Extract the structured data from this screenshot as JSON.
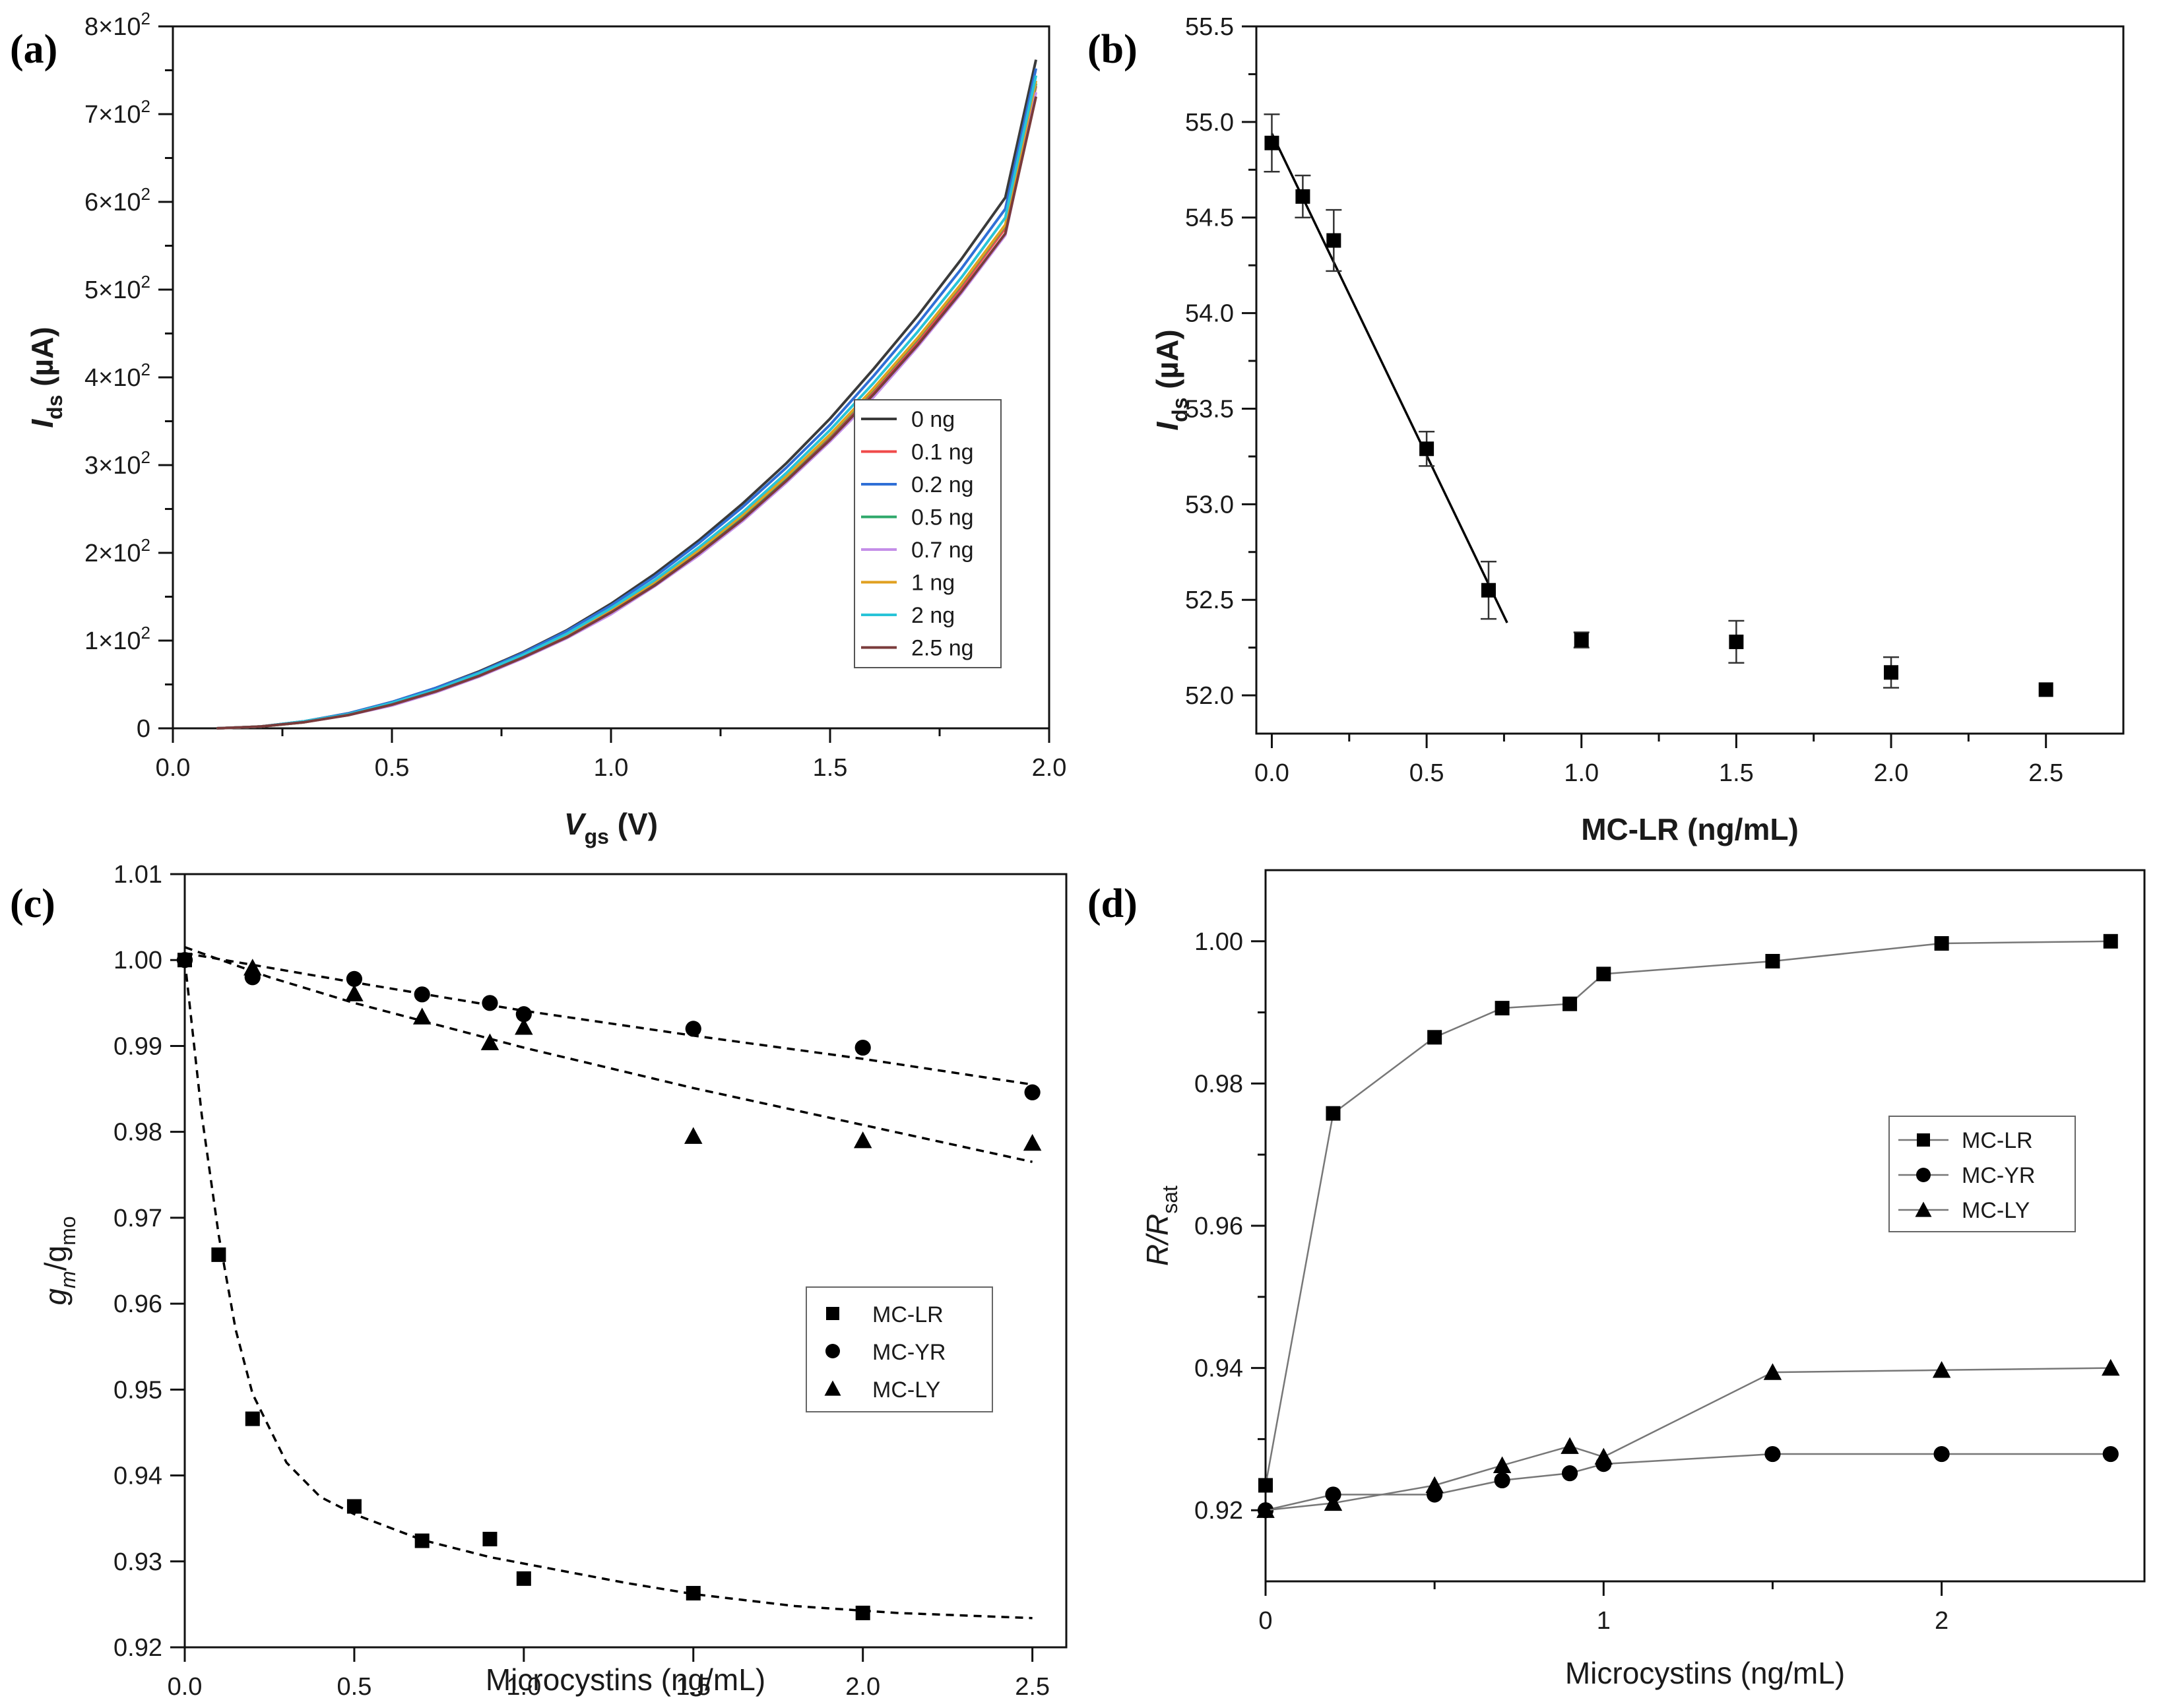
{
  "chart_data": [
    {
      "id": "a",
      "panel_label": "(a)",
      "type": "line",
      "xlabel": "V",
      "xlabel_sub": "gs",
      "xlabel_unit": " (V)",
      "ylabel": "I",
      "ylabel_sub": "ds",
      "ylabel_unit": " (µA)",
      "xlim": [
        0,
        2.0
      ],
      "ylim": [
        0,
        800
      ],
      "x_ticks": [
        {
          "value": 0.0,
          "label": "0.0"
        },
        {
          "value": 0.5,
          "label": "0.5"
        },
        {
          "value": 1.0,
          "label": "1.0"
        },
        {
          "value": 1.5,
          "label": "1.5"
        },
        {
          "value": 2.0,
          "label": "2.0"
        }
      ],
      "y_ticks": [
        {
          "value": 0,
          "base": "0",
          "exp": ""
        },
        {
          "value": 100,
          "base": "1×10",
          "exp": "2"
        },
        {
          "value": 200,
          "base": "2×10",
          "exp": "2"
        },
        {
          "value": 300,
          "base": "3×10",
          "exp": "2"
        },
        {
          "value": 400,
          "base": "4×10",
          "exp": "2"
        },
        {
          "value": 500,
          "base": "5×10",
          "exp": "2"
        },
        {
          "value": 600,
          "base": "6×10",
          "exp": "2"
        },
        {
          "value": 700,
          "base": "7×10",
          "exp": "2"
        },
        {
          "value": 800,
          "base": "8×10",
          "exp": "2"
        }
      ],
      "x": [
        0.1,
        0.2,
        0.3,
        0.4,
        0.5,
        0.6,
        0.7,
        0.8,
        0.9,
        1.0,
        1.1,
        1.2,
        1.3,
        1.4,
        1.5,
        1.6,
        1.7,
        1.8,
        1.9,
        1.97
      ],
      "series": [
        {
          "name": "0 ng",
          "color": "#3a3a3a",
          "values": [
            0,
            2,
            8,
            17,
            30,
            46,
            65,
            87,
            112,
            142,
            176,
            214,
            256,
            302,
            353,
            410,
            470,
            535,
            605,
            762
          ]
        },
        {
          "name": "0.1 ng",
          "color": "#f04a4a",
          "values": [
            0,
            2,
            7,
            15,
            27,
            42,
            60,
            81,
            105,
            133,
            165,
            201,
            241,
            285,
            333,
            385,
            441,
            503,
            570,
            732
          ]
        },
        {
          "name": "0.2 ng",
          "color": "#2f6fd6",
          "values": [
            0,
            2,
            8,
            17,
            30,
            46,
            64,
            86,
            111,
            140,
            173,
            211,
            252,
            297,
            346,
            402,
            461,
            524,
            592,
            752
          ]
        },
        {
          "name": "0.5 ng",
          "color": "#2ea86a",
          "values": [
            0,
            2,
            7,
            16,
            28,
            43,
            61,
            82,
            106,
            134,
            166,
            202,
            242,
            286,
            334,
            387,
            444,
            506,
            573,
            735
          ]
        },
        {
          "name": "0.7 ng",
          "color": "#c48ee8",
          "values": [
            0,
            2,
            7,
            15,
            26,
            41,
            59,
            80,
            103,
            130,
            162,
            197,
            236,
            280,
            327,
            378,
            435,
            496,
            562,
            725
          ]
        },
        {
          "name": "1 ng",
          "color": "#e0a020",
          "values": [
            0,
            2,
            7,
            16,
            28,
            43,
            62,
            83,
            107,
            135,
            167,
            203,
            243,
            287,
            335,
            388,
            445,
            507,
            574,
            738
          ]
        },
        {
          "name": "2 ng",
          "color": "#28c4d8",
          "values": [
            0,
            2,
            8,
            16,
            29,
            44,
            63,
            84,
            108,
            137,
            169,
            206,
            246,
            291,
            340,
            394,
            452,
            514,
            582,
            744
          ]
        },
        {
          "name": "2.5 ng",
          "color": "#7a3b3b",
          "values": [
            0,
            2,
            7,
            15,
            27,
            42,
            60,
            81,
            104,
            132,
            163,
            199,
            238,
            282,
            329,
            381,
            437,
            498,
            564,
            720
          ]
        }
      ],
      "legend_position": "lower-right"
    },
    {
      "id": "b",
      "panel_label": "(b)",
      "type": "scatter",
      "xlabel": "MC-LR (ng/mL)",
      "ylabel": "I",
      "ylabel_sub": "ds",
      "ylabel_unit": " (µA)",
      "xlim": [
        -0.05,
        2.75
      ],
      "ylim": [
        51.8,
        55.5
      ],
      "x_ticks": [
        {
          "value": 0.0,
          "label": "0.0"
        },
        {
          "value": 0.5,
          "label": "0.5"
        },
        {
          "value": 1.0,
          "label": "1.0"
        },
        {
          "value": 1.5,
          "label": "1.5"
        },
        {
          "value": 2.0,
          "label": "2.0"
        },
        {
          "value": 2.5,
          "label": "2.5"
        }
      ],
      "y_ticks": [
        {
          "value": 52.0,
          "label": "52.0"
        },
        {
          "value": 52.5,
          "label": "52.5"
        },
        {
          "value": 53.0,
          "label": "53.0"
        },
        {
          "value": 53.5,
          "label": "53.5"
        },
        {
          "value": 54.0,
          "label": "54.0"
        },
        {
          "value": 54.5,
          "label": "54.5"
        },
        {
          "value": 55.0,
          "label": "55.0"
        },
        {
          "value": 55.5,
          "label": "55.5"
        }
      ],
      "points": [
        {
          "x": 0.0,
          "y": 54.89,
          "err": 0.15
        },
        {
          "x": 0.1,
          "y": 54.61,
          "err": 0.11
        },
        {
          "x": 0.2,
          "y": 54.38,
          "err": 0.16
        },
        {
          "x": 0.5,
          "y": 53.29,
          "err": 0.09
        },
        {
          "x": 0.7,
          "y": 52.55,
          "err": 0.15
        },
        {
          "x": 1.0,
          "y": 52.29,
          "err": 0.04
        },
        {
          "x": 1.5,
          "y": 52.28,
          "err": 0.11
        },
        {
          "x": 2.0,
          "y": 52.12,
          "err": 0.08
        },
        {
          "x": 2.5,
          "y": 52.03,
          "err": 0.0
        }
      ],
      "fit_line": {
        "x": [
          0.0,
          0.76
        ],
        "y": [
          54.94,
          52.38
        ]
      }
    },
    {
      "id": "c",
      "panel_label": "(c)",
      "type": "scatter",
      "xlabel": "Microcystins (ng/mL)",
      "ylabel": "g",
      "ylabel_sub_italic": "m",
      "ylabel_tail": "/g",
      "ylabel_tail_sub": "mo",
      "xlim": [
        0,
        2.6
      ],
      "ylim": [
        0.92,
        1.01
      ],
      "x_ticks": [
        {
          "value": 0.0,
          "label": "0.0"
        },
        {
          "value": 0.5,
          "label": "0.5"
        },
        {
          "value": 1.0,
          "label": "1.0"
        },
        {
          "value": 1.5,
          "label": "1.5"
        },
        {
          "value": 2.0,
          "label": "2.0"
        },
        {
          "value": 2.5,
          "label": "2.5"
        }
      ],
      "y_ticks": [
        {
          "value": 0.92,
          "label": "0.92"
        },
        {
          "value": 0.93,
          "label": "0.93"
        },
        {
          "value": 0.94,
          "label": "0.94"
        },
        {
          "value": 0.95,
          "label": "0.95"
        },
        {
          "value": 0.96,
          "label": "0.96"
        },
        {
          "value": 0.97,
          "label": "0.97"
        },
        {
          "value": 0.98,
          "label": "0.98"
        },
        {
          "value": 0.99,
          "label": "0.99"
        },
        {
          "value": 1.0,
          "label": "1.00"
        },
        {
          "value": 1.01,
          "label": "1.01"
        }
      ],
      "series": [
        {
          "name": "MC-LR",
          "marker": "square",
          "x": [
            0.0,
            0.1,
            0.2,
            0.5,
            0.7,
            0.9,
            1.0,
            1.5,
            2.0
          ],
          "y": [
            1.0,
            0.9657,
            0.9466,
            0.9364,
            0.9324,
            0.9326,
            0.928,
            0.9263,
            0.924
          ]
        },
        {
          "name": "MC-YR",
          "marker": "circle",
          "x": [
            0.0,
            0.2,
            0.5,
            0.7,
            0.9,
            1.0,
            1.5,
            2.0,
            2.5
          ],
          "y": [
            1.0,
            0.998,
            0.9978,
            0.996,
            0.995,
            0.9937,
            0.992,
            0.9898,
            0.9846
          ]
        },
        {
          "name": "MC-LY",
          "marker": "triangle",
          "x": [
            0.2,
            0.5,
            0.7,
            0.9,
            1.0,
            1.5,
            2.0,
            2.5
          ],
          "y": [
            0.9991,
            0.9961,
            0.9934,
            0.9904,
            0.9922,
            0.9795,
            0.979,
            0.9787
          ]
        }
      ],
      "fits": [
        {
          "series": "MC-LR",
          "x": [
            0.0,
            0.05,
            0.1,
            0.15,
            0.2,
            0.3,
            0.4,
            0.5,
            0.7,
            0.9,
            1.1,
            1.3,
            1.5,
            1.8,
            2.1,
            2.5
          ],
          "y": [
            1.0,
            0.982,
            0.968,
            0.957,
            0.9495,
            0.9415,
            0.9375,
            0.9355,
            0.9325,
            0.9305,
            0.929,
            0.9275,
            0.9262,
            0.9248,
            0.924,
            0.9234
          ]
        },
        {
          "series": "MC-YR",
          "x": [
            0.0,
            0.5,
            1.0,
            1.5,
            2.0,
            2.5
          ],
          "y": [
            1.0008,
            0.9974,
            0.9941,
            0.9912,
            0.9885,
            0.9855
          ]
        },
        {
          "series": "MC-LY",
          "x": [
            0.0,
            0.25,
            0.5,
            0.75,
            1.0,
            1.5,
            2.0,
            2.5
          ],
          "y": [
            1.0015,
            0.998,
            0.995,
            0.9924,
            0.9898,
            0.9851,
            0.9808,
            0.9765
          ]
        }
      ],
      "legend_position": "center-right"
    },
    {
      "id": "d",
      "panel_label": "(d)",
      "type": "line",
      "xlabel": "Microcystins (ng/mL)",
      "ylabel": "R",
      "ylabel_tail": "/R",
      "ylabel_tail_sub": "sat",
      "xlim": [
        0,
        2.6
      ],
      "ylim": [
        0.91,
        1.01
      ],
      "x_ticks": [
        {
          "value": 0,
          "label": "0"
        },
        {
          "value": 1,
          "label": "1"
        },
        {
          "value": 2,
          "label": "2"
        }
      ],
      "y_ticks": [
        {
          "value": 0.92,
          "label": "0.92"
        },
        {
          "value": 0.94,
          "label": "0.94"
        },
        {
          "value": 0.96,
          "label": "0.96"
        },
        {
          "value": 0.98,
          "label": "0.98"
        },
        {
          "value": 1.0,
          "label": "1.00"
        }
      ],
      "series": [
        {
          "name": "MC-LR",
          "marker": "square",
          "x": [
            0.0,
            0.2,
            0.5,
            0.7,
            0.9,
            1.0,
            1.5,
            2.0,
            2.5
          ],
          "y": [
            0.9235,
            0.9758,
            0.9865,
            0.9906,
            0.9912,
            0.9954,
            0.9972,
            0.9997,
            1.0
          ]
        },
        {
          "name": "MC-YR",
          "marker": "circle",
          "x": [
            0.0,
            0.2,
            0.5,
            0.7,
            0.9,
            1.0,
            1.5,
            2.0,
            2.5
          ],
          "y": [
            0.92,
            0.9222,
            0.9222,
            0.9242,
            0.9252,
            0.9265,
            0.9279,
            0.9279,
            0.9279
          ]
        },
        {
          "name": "MC-LY",
          "marker": "triangle",
          "x": [
            0.0,
            0.2,
            0.5,
            0.7,
            0.9,
            1.0,
            1.5,
            2.0,
            2.5
          ],
          "y": [
            0.92,
            0.921,
            0.9235,
            0.9263,
            0.929,
            0.9275,
            0.9394,
            0.9397,
            0.94
          ]
        }
      ],
      "legend_position": "center-right"
    }
  ]
}
